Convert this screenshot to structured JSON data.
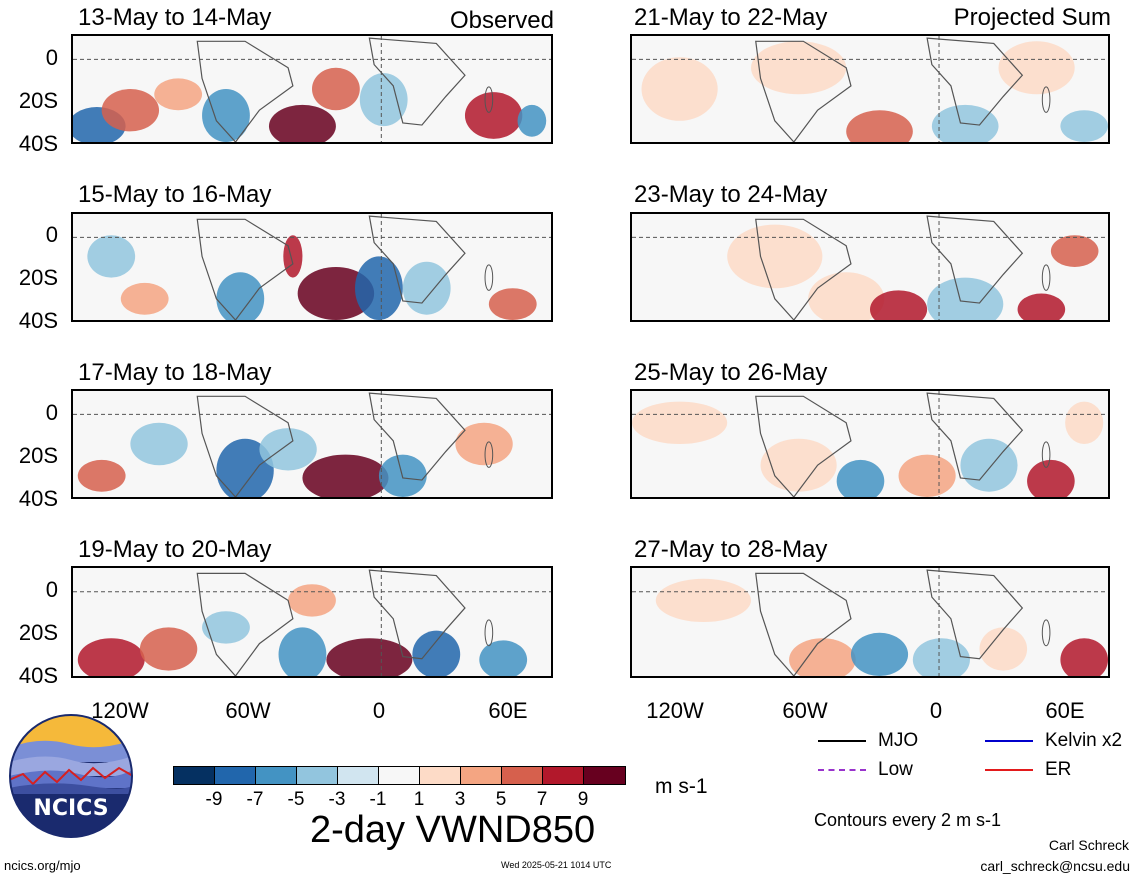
{
  "header": {
    "left_label": "Observed",
    "right_label": "Projected Sum"
  },
  "panels": {
    "left": [
      {
        "title": "13-May to 14-May"
      },
      {
        "title": "15-May to 16-May"
      },
      {
        "title": "17-May to 18-May"
      },
      {
        "title": "19-May to 20-May"
      }
    ],
    "right": [
      {
        "title": "21-May to 22-May"
      },
      {
        "title": "23-May to 24-May"
      },
      {
        "title": "25-May to 26-May"
      },
      {
        "title": "27-May to 28-May"
      }
    ]
  },
  "axes": {
    "y_ticks": [
      "0",
      "20S",
      "40S"
    ],
    "x_ticks": [
      "120W",
      "60W",
      "0",
      "60E"
    ]
  },
  "legend": {
    "mjo": "MJO",
    "kelvin": "Kelvin x2",
    "low": "Low",
    "er": "ER",
    "colors": {
      "mjo": "#000000",
      "kelvin": "#0000cc",
      "low": "#9933cc",
      "er": "#e31a1c"
    }
  },
  "colorbar": {
    "labels": [
      "-9",
      "-7",
      "-5",
      "-3",
      "-1",
      "1",
      "3",
      "5",
      "7",
      "9"
    ],
    "units": "m s-1",
    "colors": [
      "#053061",
      "#2166ac",
      "#4393c3",
      "#92c5de",
      "#d1e5f0",
      "#f7f7f7",
      "#fddbc7",
      "#f4a582",
      "#d6604d",
      "#b2182b",
      "#67001f"
    ]
  },
  "main_title": "2-day VWND850",
  "contours_note": "Contours every 2 m s-1",
  "footer": {
    "website": "ncics.org/mjo",
    "timestamp": "Wed 2025-05-21 1014 UTC",
    "author": "Carl Schreck",
    "email": "carl_schreck@ncsu.edu"
  },
  "logo": {
    "text": "NCICS"
  }
}
